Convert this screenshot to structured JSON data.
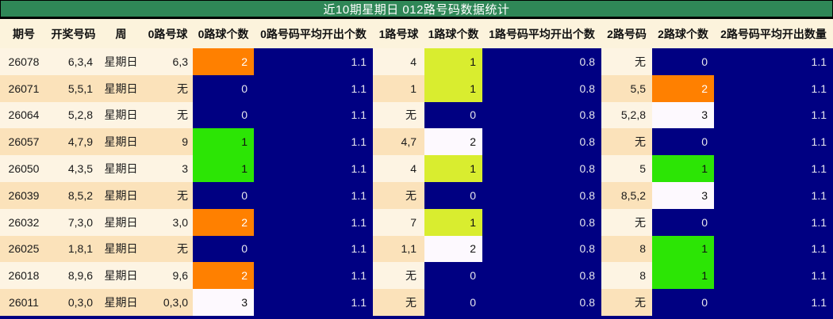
{
  "title": "近10期星期日 012路号码数据统计",
  "palette": {
    "title_bar": "#2f8757",
    "title_text": "#ffffff",
    "header_bg": "#fcf3dc",
    "row_light": "#fdf4e3",
    "row_dark": "#fbe2ba",
    "count_zero": "#000082",
    "count_one_green": "#2ce505",
    "count_one_yellow": "#d9ed2f",
    "count_two_orange": "#ff8000",
    "count_three_white": "#fdf9fe"
  },
  "table": {
    "headers": [
      "期号",
      "开奖号码",
      "周",
      "0路号球",
      "0路球个数",
      "0路号码平均开出个数",
      "1路号球",
      "1路球个数",
      "1路号码平均开出个数",
      "2路号码",
      "2路球个数",
      "2路号码平均开出数量"
    ],
    "rows": [
      {
        "cells": [
          {
            "t": "26078"
          },
          {
            "t": "6,3,4"
          },
          {
            "t": "星期日"
          },
          {
            "t": "6,3"
          },
          {
            "t": "2",
            "c": "orange"
          },
          {
            "t": "1.1",
            "c": "navy"
          },
          {
            "t": "4"
          },
          {
            "t": "1",
            "c": "yellow"
          },
          {
            "t": "0.8",
            "c": "navy"
          },
          {
            "t": "无"
          },
          {
            "t": "0",
            "c": "navy"
          },
          {
            "t": "1.1",
            "c": "navy"
          }
        ]
      },
      {
        "cells": [
          {
            "t": "26071"
          },
          {
            "t": "5,5,1"
          },
          {
            "t": "星期日"
          },
          {
            "t": "无"
          },
          {
            "t": "0",
            "c": "navy"
          },
          {
            "t": "1.1",
            "c": "navy"
          },
          {
            "t": "1"
          },
          {
            "t": "1",
            "c": "yellow"
          },
          {
            "t": "0.8",
            "c": "navy"
          },
          {
            "t": "5,5"
          },
          {
            "t": "2",
            "c": "orange"
          },
          {
            "t": "1.1",
            "c": "navy"
          }
        ]
      },
      {
        "cells": [
          {
            "t": "26064"
          },
          {
            "t": "5,2,8"
          },
          {
            "t": "星期日"
          },
          {
            "t": "无"
          },
          {
            "t": "0",
            "c": "navy"
          },
          {
            "t": "1.1",
            "c": "navy"
          },
          {
            "t": "无"
          },
          {
            "t": "0",
            "c": "navy"
          },
          {
            "t": "0.8",
            "c": "navy"
          },
          {
            "t": "5,2,8"
          },
          {
            "t": "3",
            "c": "white"
          },
          {
            "t": "1.1",
            "c": "navy"
          }
        ]
      },
      {
        "cells": [
          {
            "t": "26057"
          },
          {
            "t": "4,7,9"
          },
          {
            "t": "星期日"
          },
          {
            "t": "9"
          },
          {
            "t": "1",
            "c": "green"
          },
          {
            "t": "1.1",
            "c": "navy"
          },
          {
            "t": "4,7"
          },
          {
            "t": "2",
            "c": "white"
          },
          {
            "t": "0.8",
            "c": "navy"
          },
          {
            "t": "无"
          },
          {
            "t": "0",
            "c": "navy"
          },
          {
            "t": "1.1",
            "c": "navy"
          }
        ]
      },
      {
        "cells": [
          {
            "t": "26050"
          },
          {
            "t": "4,3,5"
          },
          {
            "t": "星期日"
          },
          {
            "t": "3"
          },
          {
            "t": "1",
            "c": "green"
          },
          {
            "t": "1.1",
            "c": "navy"
          },
          {
            "t": "4"
          },
          {
            "t": "1",
            "c": "yellow"
          },
          {
            "t": "0.8",
            "c": "navy"
          },
          {
            "t": "5"
          },
          {
            "t": "1",
            "c": "green"
          },
          {
            "t": "1.1",
            "c": "navy"
          }
        ]
      },
      {
        "cells": [
          {
            "t": "26039"
          },
          {
            "t": "8,5,2"
          },
          {
            "t": "星期日"
          },
          {
            "t": "无"
          },
          {
            "t": "0",
            "c": "navy"
          },
          {
            "t": "1.1",
            "c": "navy"
          },
          {
            "t": "无"
          },
          {
            "t": "0",
            "c": "navy"
          },
          {
            "t": "0.8",
            "c": "navy"
          },
          {
            "t": "8,5,2"
          },
          {
            "t": "3",
            "c": "white"
          },
          {
            "t": "1.1",
            "c": "navy"
          }
        ]
      },
      {
        "cells": [
          {
            "t": "26032"
          },
          {
            "t": "7,3,0"
          },
          {
            "t": "星期日"
          },
          {
            "t": "3,0"
          },
          {
            "t": "2",
            "c": "orange"
          },
          {
            "t": "1.1",
            "c": "navy"
          },
          {
            "t": "7"
          },
          {
            "t": "1",
            "c": "yellow"
          },
          {
            "t": "0.8",
            "c": "navy"
          },
          {
            "t": "无"
          },
          {
            "t": "0",
            "c": "navy"
          },
          {
            "t": "1.1",
            "c": "navy"
          }
        ]
      },
      {
        "cells": [
          {
            "t": "26025"
          },
          {
            "t": "1,8,1"
          },
          {
            "t": "星期日"
          },
          {
            "t": "无"
          },
          {
            "t": "0",
            "c": "navy"
          },
          {
            "t": "1.1",
            "c": "navy"
          },
          {
            "t": "1,1"
          },
          {
            "t": "2",
            "c": "white"
          },
          {
            "t": "0.8",
            "c": "navy"
          },
          {
            "t": "8"
          },
          {
            "t": "1",
            "c": "green"
          },
          {
            "t": "1.1",
            "c": "navy"
          }
        ]
      },
      {
        "cells": [
          {
            "t": "26018"
          },
          {
            "t": "8,9,6"
          },
          {
            "t": "星期日"
          },
          {
            "t": "9,6"
          },
          {
            "t": "2",
            "c": "orange"
          },
          {
            "t": "1.1",
            "c": "navy"
          },
          {
            "t": "无"
          },
          {
            "t": "0",
            "c": "navy"
          },
          {
            "t": "0.8",
            "c": "navy"
          },
          {
            "t": "8"
          },
          {
            "t": "1",
            "c": "green"
          },
          {
            "t": "1.1",
            "c": "navy"
          }
        ]
      },
      {
        "cells": [
          {
            "t": "26011"
          },
          {
            "t": "0,3,0"
          },
          {
            "t": "星期日"
          },
          {
            "t": "0,3,0"
          },
          {
            "t": "3",
            "c": "white"
          },
          {
            "t": "1.1",
            "c": "navy"
          },
          {
            "t": "无"
          },
          {
            "t": "0",
            "c": "navy"
          },
          {
            "t": "0.8",
            "c": "navy"
          },
          {
            "t": "无"
          },
          {
            "t": "0",
            "c": "navy"
          },
          {
            "t": "1.1",
            "c": "navy"
          }
        ]
      }
    ]
  }
}
